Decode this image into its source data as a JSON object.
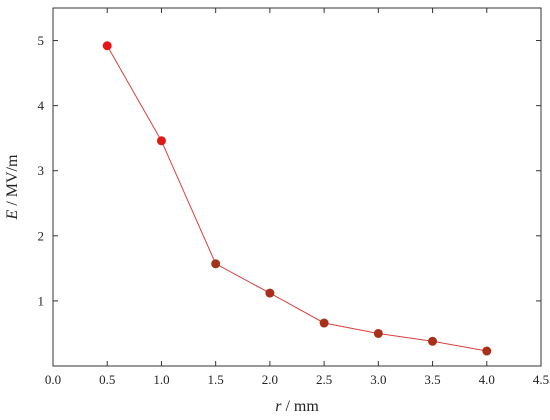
{
  "chart_data": {
    "type": "line",
    "xlabel_var": "r",
    "xlabel_unit": " / mm",
    "ylabel_var": "E",
    "ylabel_unit": " / MV/m",
    "xlim": [
      0.0,
      4.5
    ],
    "ylim": [
      0.0,
      5.5
    ],
    "x_ticks": [
      "0.0",
      "0.5",
      "1.0",
      "1.5",
      "2.0",
      "2.5",
      "3.0",
      "3.5",
      "4.0",
      "4.5"
    ],
    "y_ticks": [
      "1",
      "2",
      "3",
      "4",
      "5"
    ],
    "grid": false,
    "series": [
      {
        "x": [
          0.5,
          1.0,
          1.5,
          2.0,
          2.5,
          3.0,
          3.5,
          4.0
        ],
        "y": [
          4.92,
          3.46,
          1.57,
          1.12,
          0.66,
          0.5,
          0.38,
          0.23
        ],
        "line_color": "#d94040",
        "marker_colors": [
          "#e8141a",
          "#de1a16",
          "#a0351a",
          "#a8301a",
          "#a8301a",
          "#a8301a",
          "#a8301a",
          "#a8301a"
        ]
      }
    ]
  }
}
